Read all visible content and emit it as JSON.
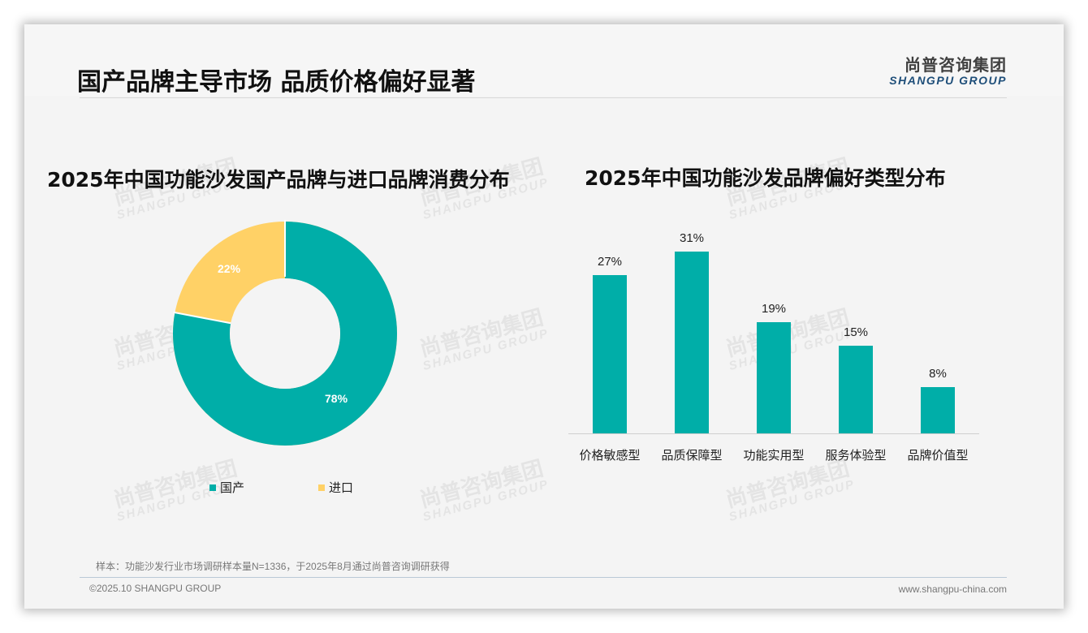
{
  "header": {
    "title": "国产品牌主导市场 品质价格偏好显著",
    "logo_cn": "尚普咨询集团",
    "logo_en": "SHANGPU GROUP"
  },
  "watermark": {
    "cn": "尚普咨询集团",
    "en": "SHANGPU GROUP"
  },
  "colors": {
    "teal": "#00aea8",
    "yellow": "#ffd166",
    "logo_blue": "#1e4e79"
  },
  "left_chart": {
    "title": "2025年中国功能沙发国产品牌与进口品牌消费分布",
    "slices": [
      {
        "name": "国产",
        "value": 78,
        "label": "78%",
        "color": "#00aea8"
      },
      {
        "name": "进口",
        "value": 22,
        "label": "22%",
        "color": "#ffd166"
      }
    ]
  },
  "right_chart": {
    "title": "2025年中国功能沙发品牌偏好类型分布",
    "bars": [
      {
        "category": "价格敏感型",
        "value": 27,
        "label": "27%"
      },
      {
        "category": "品质保障型",
        "value": 31,
        "label": "31%"
      },
      {
        "category": "功能实用型",
        "value": 19,
        "label": "19%"
      },
      {
        "category": "服务体验型",
        "value": 15,
        "label": "15%"
      },
      {
        "category": "品牌价值型",
        "value": 8,
        "label": "8%"
      }
    ]
  },
  "chart_data": [
    {
      "type": "pie",
      "title": "2025年中国功能沙发国产品牌与进口品牌消费分布",
      "categories": [
        "国产",
        "进口"
      ],
      "values": [
        78,
        22
      ],
      "unit": "%",
      "donut": true,
      "legend_position": "bottom",
      "colors": [
        "#00aea8",
        "#ffd166"
      ]
    },
    {
      "type": "bar",
      "title": "2025年中国功能沙发品牌偏好类型分布",
      "categories": [
        "价格敏感型",
        "品质保障型",
        "功能实用型",
        "服务体验型",
        "品牌价值型"
      ],
      "values": [
        27,
        31,
        19,
        15,
        8
      ],
      "unit": "%",
      "xlabel": "",
      "ylabel": "",
      "grid": false,
      "data_labels": true,
      "color": "#00aea8"
    }
  ],
  "footer": {
    "note": "样本：功能沙发行业市场调研样本量N=1336，于2025年8月通过尚普咨询调研获得",
    "copyright": "©2025.10 SHANGPU GROUP",
    "website": "www.shangpu-china.com"
  }
}
